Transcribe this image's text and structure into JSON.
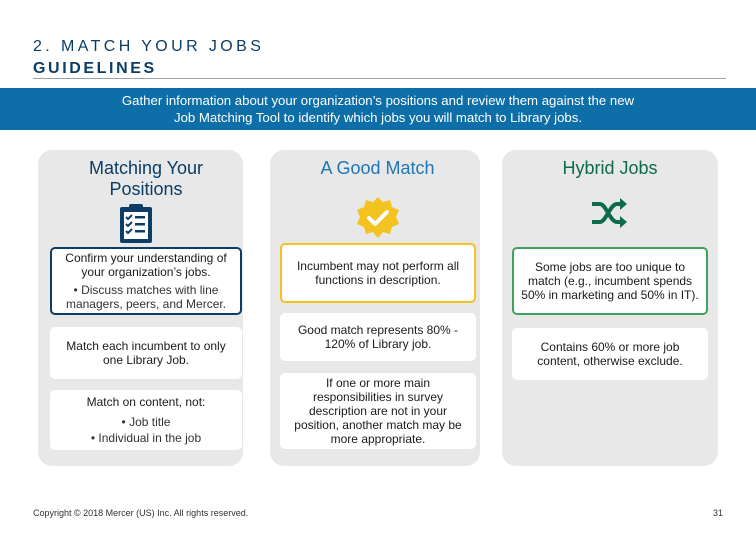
{
  "header": {
    "title_line1": "2. MATCH YOUR JOBS",
    "title_line2": "GUIDELINES"
  },
  "banner": {
    "line1": "Gather information about your organization’s positions and review them against the new",
    "line2": "Job Matching Tool to identify which jobs you will match to Library jobs."
  },
  "columns": [
    {
      "title": "Matching Your Positions",
      "icon": "clipboard-checklist-icon",
      "cards": [
        {
          "text": "Confirm your understanding of your organization’s jobs.",
          "sub": "• Discuss matches with line managers, peers, and Mercer."
        },
        {
          "text": "Match each incumbent to only one Library Job."
        },
        {
          "text": "Match on content, not:",
          "sub1": "• Job title",
          "sub2": "• Individual in the job"
        }
      ]
    },
    {
      "title": "A Good Match",
      "icon": "checkmark-seal-icon",
      "cards": [
        {
          "text": "Incumbent may not perform all functions in description."
        },
        {
          "text": "Good match represents 80% - 120% of Library job."
        },
        {
          "text": "If one or more main responsibilities in survey description are not in your position, another match may be more appropriate."
        }
      ]
    },
    {
      "title": "Hybrid Jobs",
      "icon": "shuffle-arrows-icon",
      "cards": [
        {
          "text": "Some jobs are too unique to match (e.g., incumbent spends 50% in marketing and 50% in IT)."
        },
        {
          "text": "Contains 60% or more job content, otherwise exclude."
        }
      ]
    }
  ],
  "footer": {
    "copyright": "Copyright © 2018 Mercer (US) Inc. All rights reserved.",
    "page_number": "31"
  },
  "colors": {
    "navy": "#0b3d66",
    "banner_blue": "#0e6fa8",
    "yellow": "#f3c321",
    "green": "#3fa35b",
    "panel_gray": "#e8e8e8"
  }
}
